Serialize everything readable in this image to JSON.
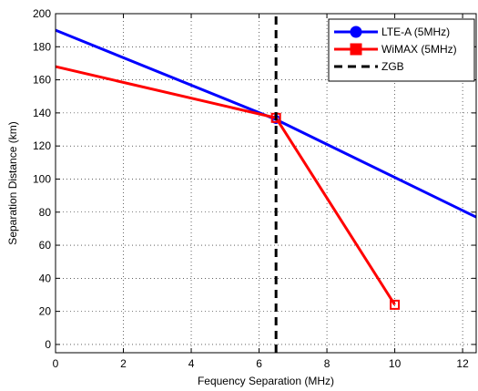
{
  "chart_data": {
    "type": "line",
    "xlabel": "Fequency Separation (MHz)",
    "ylabel": "Separation Distance (km)",
    "xlim": [
      0,
      12.4
    ],
    "ylim": [
      -5,
      200
    ],
    "xticks": [
      0,
      2,
      4,
      6,
      8,
      10,
      12
    ],
    "yticks": [
      0,
      20,
      40,
      60,
      80,
      100,
      120,
      140,
      160,
      180,
      200
    ],
    "grid": "dotted",
    "legend_position": "top-right",
    "series": [
      {
        "name": "LTE-A (5MHz)",
        "color": "#0000ff",
        "marker": "circle",
        "x": [
          0,
          6.5,
          12.4
        ],
        "y": [
          190,
          136,
          77
        ],
        "marked_points": [
          1
        ]
      },
      {
        "name": "WiMAX (5MHz)",
        "color": "#ff0000",
        "marker": "square",
        "x": [
          0,
          6.5,
          10
        ],
        "y": [
          168,
          137,
          24
        ],
        "marked_points": [
          1,
          2
        ]
      },
      {
        "name": "ZGB",
        "color": "#000000",
        "marker": "none",
        "dash": true,
        "x": [
          6.5,
          6.5
        ],
        "y": [
          -5,
          200
        ],
        "marked_points": []
      }
    ]
  }
}
